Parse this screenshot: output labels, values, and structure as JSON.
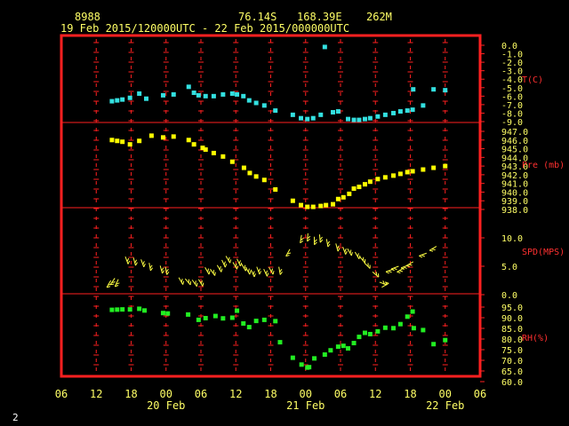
{
  "header": {
    "station_id": "8988",
    "lat": "76.14S",
    "lon": "168.39E",
    "elev": "262M",
    "range": "19 Feb 2015/120000UTC - 22 Feb 2015/000000UTC"
  },
  "corner_label": "2",
  "colors": {
    "frame": "#ff2020",
    "tick_labels": "#ffff66",
    "right_labels": "#ff3030",
    "temp": "#33e0e0",
    "pressure": "#ffff00",
    "wind": "#ffff44",
    "rh": "#22ee22"
  },
  "chart_data": {
    "type": "scatter",
    "x_ticks": [
      "06",
      "12",
      "18",
      "00",
      "06",
      "12",
      "18",
      "00",
      "06",
      "12",
      "18",
      "00",
      "06"
    ],
    "x_day_labels": [
      {
        "label": "20 Feb",
        "at_hour": 18
      },
      {
        "label": "21 Feb",
        "at_hour": 42
      },
      {
        "label": "22 Feb",
        "at_hour": 66
      }
    ],
    "x_range_hours": [
      0,
      72
    ],
    "panels": [
      {
        "id": "temp",
        "label": "T(C)",
        "ticks": [
          "0.0",
          "-1.0",
          "-2.0",
          "-3.0",
          "-4.0",
          "-5.0",
          "-6.0",
          "-7.0",
          "-8.0",
          "-9.0"
        ],
        "ylim": [
          -9,
          0
        ],
        "marker": "square",
        "points": [
          [
            8.7,
            -6.6
          ],
          [
            9.6,
            -6.5
          ],
          [
            10.5,
            -6.4
          ],
          [
            11.8,
            -6.2
          ],
          [
            13.4,
            -5.7
          ],
          [
            14.6,
            -6.3
          ],
          [
            17.5,
            -5.9
          ],
          [
            19.3,
            -5.8
          ],
          [
            21.9,
            -4.9
          ],
          [
            22.8,
            -5.6
          ],
          [
            23.6,
            -5.9
          ],
          [
            24.8,
            -6.0
          ],
          [
            26.2,
            -6.0
          ],
          [
            27.8,
            -5.8
          ],
          [
            29.4,
            -5.7
          ],
          [
            30.2,
            -5.8
          ],
          [
            31.3,
            -6.0
          ],
          [
            32.3,
            -6.5
          ],
          [
            33.5,
            -6.8
          ],
          [
            34.9,
            -7.1
          ],
          [
            36.8,
            -7.7
          ],
          [
            39.8,
            -8.2
          ],
          [
            41.2,
            -8.6
          ],
          [
            42.3,
            -8.7
          ],
          [
            43.3,
            -8.6
          ],
          [
            44.6,
            -8.2
          ],
          [
            45.3,
            -0.2
          ],
          [
            46.7,
            -7.9
          ],
          [
            47.6,
            -7.8
          ],
          [
            49.3,
            -8.7
          ],
          [
            50.3,
            -8.8
          ],
          [
            51.2,
            -8.8
          ],
          [
            52.2,
            -8.7
          ],
          [
            53.1,
            -8.6
          ],
          [
            54.4,
            -8.4
          ],
          [
            55.7,
            -8.2
          ],
          [
            57.1,
            -8.0
          ],
          [
            58.3,
            -7.8
          ],
          [
            59.5,
            -7.7
          ],
          [
            60.4,
            -7.6
          ],
          [
            60.5,
            -5.2
          ],
          [
            62.2,
            -7.1
          ],
          [
            64.0,
            -5.2
          ],
          [
            66.0,
            -5.3
          ]
        ]
      },
      {
        "id": "pressure",
        "label": "Pre (mb)",
        "ticks": [
          "947.0",
          "946.0",
          "945.0",
          "944.0",
          "943.0",
          "942.0",
          "941.0",
          "940.0",
          "939.0",
          "938.0"
        ],
        "ylim": [
          938,
          947
        ],
        "marker": "square",
        "points": [
          [
            8.7,
            946.0
          ],
          [
            9.6,
            945.9
          ],
          [
            10.5,
            945.8
          ],
          [
            11.8,
            945.5
          ],
          [
            13.4,
            945.9
          ],
          [
            15.5,
            946.5
          ],
          [
            17.5,
            946.3
          ],
          [
            19.3,
            946.4
          ],
          [
            21.9,
            946.0
          ],
          [
            22.8,
            945.5
          ],
          [
            24.3,
            945.1
          ],
          [
            24.8,
            944.9
          ],
          [
            26.2,
            944.5
          ],
          [
            27.8,
            944.1
          ],
          [
            29.4,
            943.5
          ],
          [
            31.4,
            942.8
          ],
          [
            32.4,
            942.2
          ],
          [
            33.5,
            941.8
          ],
          [
            34.9,
            941.4
          ],
          [
            36.8,
            940.3
          ],
          [
            39.8,
            939.0
          ],
          [
            41.2,
            938.5
          ],
          [
            42.3,
            938.3
          ],
          [
            43.3,
            938.3
          ],
          [
            44.6,
            938.4
          ],
          [
            45.5,
            938.5
          ],
          [
            46.7,
            938.6
          ],
          [
            47.6,
            939.2
          ],
          [
            48.5,
            939.4
          ],
          [
            49.5,
            939.8
          ],
          [
            50.3,
            940.4
          ],
          [
            51.2,
            940.6
          ],
          [
            52.2,
            940.9
          ],
          [
            53.1,
            941.2
          ],
          [
            54.4,
            941.5
          ],
          [
            55.7,
            941.7
          ],
          [
            57.1,
            941.9
          ],
          [
            58.3,
            942.1
          ],
          [
            59.5,
            942.3
          ],
          [
            60.4,
            942.4
          ],
          [
            62.2,
            942.6
          ],
          [
            64.0,
            942.8
          ],
          [
            66.0,
            943.0
          ]
        ]
      },
      {
        "id": "wind",
        "label": "SPD(MPS)",
        "ticks": [
          "10.0",
          "5.0",
          "0.0"
        ],
        "ylim": [
          0,
          12.5
        ],
        "marker": "wind-barb",
        "points": [
          [
            8.5,
            2.5,
            240
          ],
          [
            9.2,
            2.9,
            235
          ],
          [
            9.8,
            2.7,
            245
          ],
          [
            11.0,
            6.7,
            290
          ],
          [
            12.4,
            6.5,
            285
          ],
          [
            13.7,
            6.2,
            290
          ],
          [
            15.1,
            5.6,
            280
          ],
          [
            17.0,
            5.1,
            285
          ],
          [
            17.9,
            4.9,
            280
          ],
          [
            20.2,
            3.0,
            300
          ],
          [
            21.3,
            2.8,
            310
          ],
          [
            22.5,
            2.6,
            305
          ],
          [
            23.6,
            2.7,
            300
          ],
          [
            24.7,
            4.8,
            300
          ],
          [
            25.6,
            4.5,
            305
          ],
          [
            26.8,
            5.2,
            300
          ],
          [
            27.6,
            6.1,
            295
          ],
          [
            28.3,
            6.8,
            300
          ],
          [
            29.5,
            5.7,
            300
          ],
          [
            30.2,
            6.3,
            295
          ],
          [
            31.0,
            5.4,
            300
          ],
          [
            31.7,
            4.8,
            300
          ],
          [
            32.6,
            4.4,
            295
          ],
          [
            33.6,
            4.9,
            290
          ],
          [
            34.8,
            4.5,
            295
          ],
          [
            35.7,
            4.8,
            300
          ],
          [
            37.4,
            4.9,
            280
          ],
          [
            39.3,
            8.0,
            240
          ],
          [
            41.3,
            10.5,
            260
          ],
          [
            42.4,
            10.8,
            265
          ],
          [
            43.5,
            10.2,
            270
          ],
          [
            44.4,
            10.6,
            275
          ],
          [
            45.6,
            9.8,
            280
          ],
          [
            47.2,
            9.0,
            285
          ],
          [
            48.4,
            8.4,
            290
          ],
          [
            49.2,
            8.1,
            300
          ],
          [
            50.5,
            7.5,
            300
          ],
          [
            51.3,
            6.7,
            310
          ],
          [
            52.1,
            5.6,
            315
          ],
          [
            53.5,
            4.0,
            320
          ],
          [
            54.7,
            2.2,
            340
          ],
          [
            55.1,
            1.3,
            30
          ],
          [
            57.1,
            4.5,
            200
          ],
          [
            58.0,
            5.0,
            200
          ],
          [
            58.9,
            4.7,
            210
          ],
          [
            59.7,
            5.2,
            200
          ],
          [
            60.5,
            5.8,
            210
          ],
          [
            62.8,
            7.3,
            200
          ],
          [
            64.5,
            8.5,
            210
          ]
        ]
      },
      {
        "id": "rh",
        "label": "RH(%)",
        "ticks": [
          "95.0",
          "90.0",
          "85.0",
          "80.0",
          "75.0",
          "70.0",
          "65.0",
          "60.0"
        ],
        "ylim": [
          60,
          97.5
        ],
        "marker": "square",
        "points": [
          [
            8.7,
            93.7
          ],
          [
            9.6,
            93.8
          ],
          [
            10.5,
            93.9
          ],
          [
            11.8,
            93.9
          ],
          [
            13.4,
            94.2
          ],
          [
            14.3,
            93.4
          ],
          [
            17.5,
            92.2
          ],
          [
            18.3,
            92.0
          ],
          [
            21.8,
            91.5
          ],
          [
            23.6,
            89.0
          ],
          [
            24.8,
            89.8
          ],
          [
            26.5,
            90.8
          ],
          [
            27.8,
            89.7
          ],
          [
            29.4,
            90.0
          ],
          [
            30.2,
            93.3
          ],
          [
            31.3,
            87.3
          ],
          [
            32.3,
            85.6
          ],
          [
            33.5,
            88.5
          ],
          [
            34.9,
            89.0
          ],
          [
            36.8,
            88.4
          ],
          [
            37.6,
            78.5
          ],
          [
            39.8,
            71.2
          ],
          [
            41.3,
            68.0
          ],
          [
            42.3,
            66.6
          ],
          [
            42.6,
            66.8
          ],
          [
            43.5,
            70.9
          ],
          [
            45.3,
            72.7
          ],
          [
            46.3,
            74.7
          ],
          [
            47.6,
            76.4
          ],
          [
            48.5,
            76.8
          ],
          [
            49.3,
            75.6
          ],
          [
            50.3,
            78.1
          ],
          [
            51.2,
            81.0
          ],
          [
            52.2,
            82.9
          ],
          [
            53.1,
            82.3
          ],
          [
            54.4,
            83.6
          ],
          [
            55.7,
            85.3
          ],
          [
            57.1,
            85.1
          ],
          [
            58.3,
            87.0
          ],
          [
            59.5,
            90.5
          ],
          [
            60.4,
            92.9
          ],
          [
            60.6,
            85.1
          ],
          [
            62.2,
            84.2
          ],
          [
            64.0,
            77.6
          ],
          [
            66.0,
            79.5
          ]
        ]
      }
    ]
  }
}
